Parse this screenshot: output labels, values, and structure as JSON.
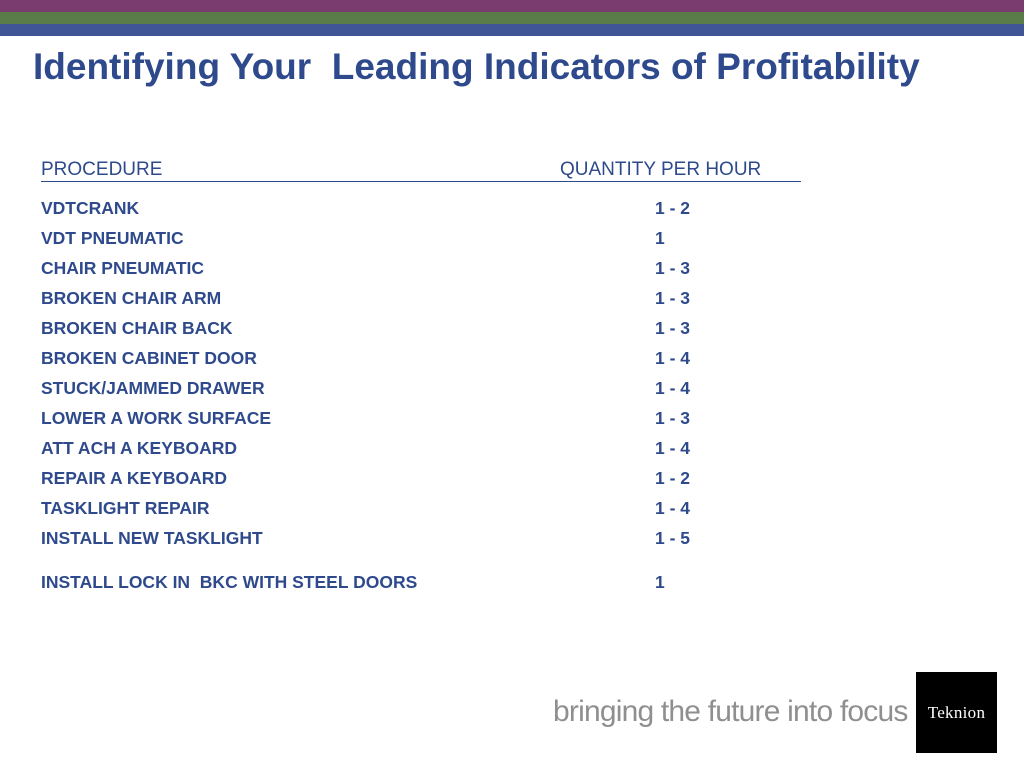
{
  "colors": {
    "stripe_top": "#7a3b6e",
    "stripe_middle": "#5a7c48",
    "stripe_bottom": "#3f5596",
    "text": "#2e4a8c",
    "tagline": "#8f8f8f",
    "logo_bg": "#000000"
  },
  "title": "Identifying Your  Leading Indicators of Profitability",
  "table": {
    "headers": {
      "procedure": "PROCEDURE",
      "quantity": "QUANTITY PER HOUR"
    },
    "rows": [
      {
        "procedure": "VDTCRANK",
        "quantity": "1 - 2"
      },
      {
        "procedure": "VDT PNEUMATIC",
        "quantity": "1"
      },
      {
        "procedure": "CHAIR PNEUMATIC",
        "quantity": "1 - 3"
      },
      {
        "procedure": "BROKEN CHAIR ARM",
        "quantity": "1 - 3"
      },
      {
        "procedure": "BROKEN CHAIR BACK",
        "quantity": "1 - 3"
      },
      {
        "procedure": "BROKEN CABINET DOOR",
        "quantity": "1 - 4"
      },
      {
        "procedure": "STUCK/JAMMED DRAWER",
        "quantity": "1 - 4"
      },
      {
        "procedure": "LOWER A WORK SURFACE",
        "quantity": "1 - 3"
      },
      {
        "procedure": "ATT ACH A KEYBOARD",
        "quantity": "1 - 4"
      },
      {
        "procedure": "REPAIR A KEYBOARD",
        "quantity": "1 - 2"
      },
      {
        "procedure": "TASKLIGHT REPAIR",
        "quantity": "1 - 4"
      },
      {
        "procedure": "INSTALL NEW TASKLIGHT",
        "quantity": "1 - 5"
      },
      {
        "procedure": "INSTALL LOCK IN  BKC WITH STEEL DOORS",
        "quantity": "1"
      }
    ]
  },
  "footer": {
    "tagline": "bringing the future into focus",
    "logo": "Teknion"
  }
}
